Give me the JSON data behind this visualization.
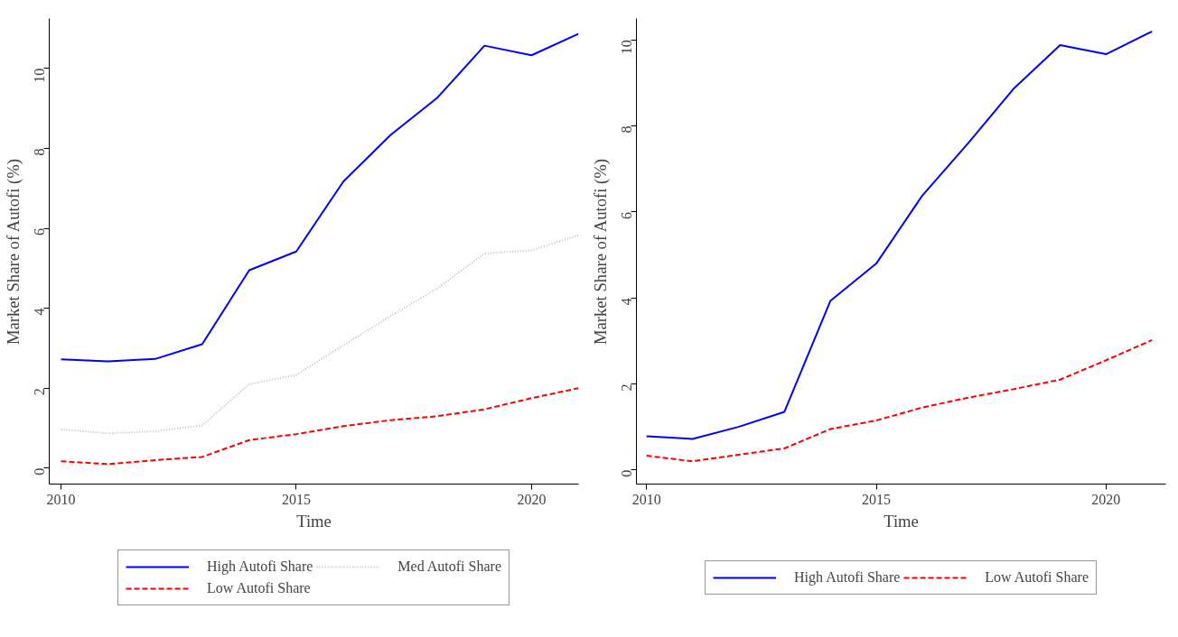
{
  "chart_data": [
    {
      "type": "line",
      "xlabel": "Time",
      "ylabel": "Market Share of Autofi (%)",
      "x": [
        2010,
        2011,
        2012,
        2013,
        2014,
        2015,
        2016,
        2017,
        2018,
        2019,
        2020,
        2021
      ],
      "xlim": [
        2009.75,
        2021
      ],
      "xticks": [
        2010,
        2015,
        2020
      ],
      "ylim": [
        -0.4,
        11.25
      ],
      "yticks": [
        0,
        2,
        4,
        6,
        8,
        10
      ],
      "grid": false,
      "legend": "bottom",
      "series": [
        {
          "name": "High Autofi Share",
          "color": "#0000ff",
          "line_style": "solid",
          "values": [
            2.72,
            2.67,
            2.73,
            3.1,
            4.95,
            5.42,
            7.17,
            8.33,
            9.27,
            10.57,
            10.33,
            10.87
          ]
        },
        {
          "name": "Med Autofi Share",
          "color": "#c0c0c0",
          "line_style": "dotted",
          "values": [
            0.97,
            0.87,
            0.92,
            1.07,
            2.1,
            2.33,
            3.07,
            3.8,
            4.5,
            5.37,
            5.45,
            5.83
          ]
        },
        {
          "name": "Low Autofi Share",
          "color": "#ff0000",
          "line_style": "dashed",
          "values": [
            0.17,
            0.1,
            0.2,
            0.28,
            0.7,
            0.85,
            1.05,
            1.2,
            1.3,
            1.47,
            1.75,
            2.0
          ]
        }
      ]
    },
    {
      "type": "line",
      "xlabel": "Time",
      "ylabel": "Market Share of Autofi (%)",
      "x": [
        2010,
        2011,
        2012,
        2013,
        2014,
        2015,
        2016,
        2017,
        2018,
        2019,
        2020,
        2021
      ],
      "xlim": [
        2009.78,
        2021.3
      ],
      "xticks": [
        2010,
        2015,
        2020
      ],
      "ylim": [
        -0.33,
        10.5
      ],
      "yticks": [
        0,
        2,
        4,
        6,
        8,
        10
      ],
      "grid": false,
      "legend": "bottom",
      "series": [
        {
          "name": "High Autofi Share",
          "color": "#0000ff",
          "line_style": "solid",
          "values": [
            0.78,
            0.72,
            1.0,
            1.35,
            3.93,
            4.8,
            6.38,
            7.6,
            8.88,
            9.88,
            9.67,
            10.2
          ]
        },
        {
          "name": "Low Autofi Share",
          "color": "#ff0000",
          "line_style": "dashed",
          "values": [
            0.33,
            0.2,
            0.35,
            0.5,
            0.95,
            1.15,
            1.45,
            1.68,
            1.88,
            2.1,
            2.55,
            3.02
          ]
        }
      ]
    }
  ]
}
